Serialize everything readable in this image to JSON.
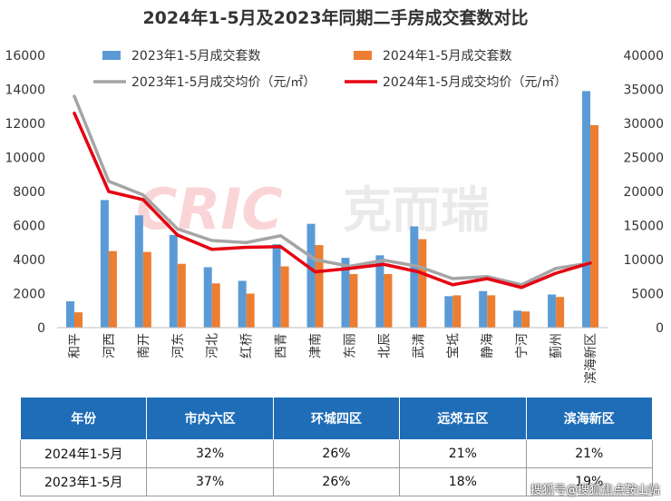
{
  "chart_data": {
    "type": "bar",
    "title": "2024年1-5月及2023年同期二手房成交套数对比",
    "categories": [
      "和平",
      "河西",
      "南开",
      "河东",
      "河北",
      "红桥",
      "西青",
      "津南",
      "东丽",
      "北辰",
      "武清",
      "宝坻",
      "静海",
      "宁河",
      "蓟州",
      "滨海新区"
    ],
    "series": [
      {
        "name": "2023年1-5月成交套数",
        "kind": "bar",
        "axis": "left",
        "color": "#5b9bd5",
        "values": [
          1550,
          7500,
          6600,
          5450,
          3550,
          2750,
          4900,
          6100,
          4100,
          4250,
          5950,
          1850,
          2150,
          1000,
          1950,
          13900
        ]
      },
      {
        "name": "2024年1-5月成交套数",
        "kind": "bar",
        "axis": "left",
        "color": "#ed7d31",
        "values": [
          900,
          4500,
          4450,
          3750,
          2600,
          2000,
          3600,
          4850,
          3150,
          3150,
          5200,
          1900,
          1900,
          950,
          1800,
          11900
        ]
      },
      {
        "name": "2023年1-5月成交均价（元/㎡）",
        "kind": "line",
        "axis": "right",
        "color": "#a5a5a5",
        "values": [
          34000,
          21500,
          19500,
          14500,
          12800,
          12500,
          13500,
          10000,
          9000,
          9900,
          9000,
          7200,
          7500,
          6300,
          8700,
          9500
        ]
      },
      {
        "name": "2024年1-5月成交均价（元/㎡）",
        "kind": "line",
        "axis": "right",
        "color": "#e60012",
        "values": [
          31500,
          20000,
          18800,
          13600,
          11500,
          11800,
          11900,
          8200,
          8700,
          9300,
          8200,
          6300,
          7200,
          5900,
          8000,
          9500
        ]
      }
    ],
    "y_left": {
      "min": 0,
      "max": 16000,
      "ticks": [
        "0",
        "2000",
        "4000",
        "6000",
        "8000",
        "10000",
        "12000",
        "14000",
        "16000"
      ]
    },
    "y_right": {
      "min": 0,
      "max": 40000,
      "ticks": [
        "0",
        "5000",
        "10000",
        "15000",
        "20000",
        "25000",
        "30000",
        "35000",
        "40000"
      ]
    },
    "grid": false,
    "legend_position": "top"
  },
  "chart_logo": {
    "brand": "CRIC",
    "text": "克而瑞"
  },
  "table": {
    "headers": [
      "年份",
      "市内六区",
      "环城四区",
      "远郊五区",
      "滨海新区"
    ],
    "rows": [
      [
        "2024年1-5月",
        "32%",
        "26%",
        "21%",
        "21%"
      ],
      [
        "2023年1-5月",
        "37%",
        "26%",
        "18%",
        "19%"
      ]
    ]
  },
  "watermark": "搜狐号@搜狐焦点鞍山站",
  "colors": {
    "header_bg": "#1f6db7",
    "bar_2023": "#5b9bd5",
    "bar_2024": "#ed7d31",
    "line_2023": "#a5a5a5",
    "line_2024": "#e60012"
  }
}
